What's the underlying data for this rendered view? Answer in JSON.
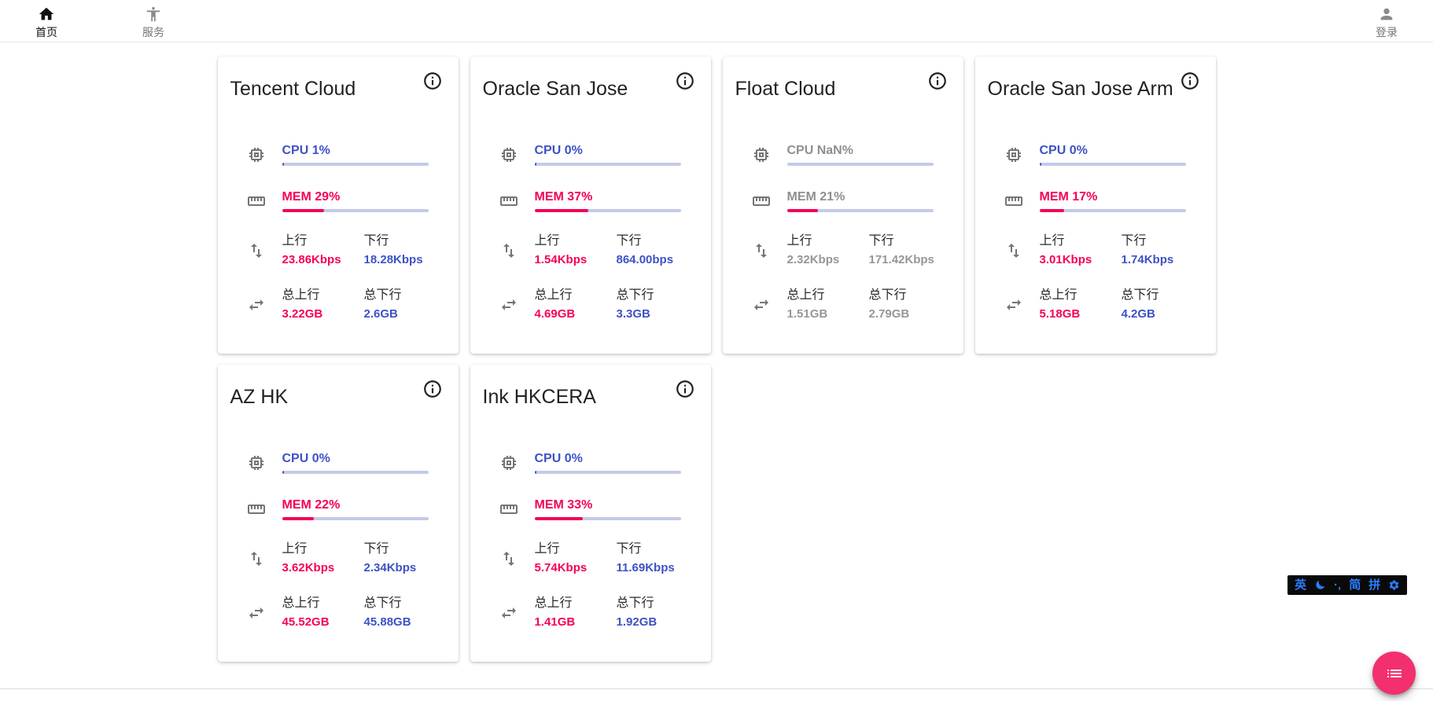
{
  "nav": {
    "home": {
      "label": "首页"
    },
    "services": {
      "label": "服务"
    },
    "login": {
      "label": "登录"
    }
  },
  "labels": {
    "upload": "上行",
    "download": "下行",
    "total_upload": "总上行",
    "total_download": "总下行"
  },
  "colors": {
    "cpu_blue": "#3d52c7",
    "mem_pink": "#f50057",
    "bar_track": "#c5cae9",
    "offline_gray": "#969696",
    "fab_pink": "#f2306e",
    "ime_blue": "#2b7cff"
  },
  "servers": [
    {
      "name": "Tencent Cloud",
      "state": "online",
      "cpu_label": "CPU 1%",
      "cpu_pct": 1,
      "mem_label": "MEM 29%",
      "mem_pct": 29,
      "up": "23.86Kbps",
      "down": "18.28Kbps",
      "total_up": "3.22GB",
      "total_down": "2.6GB"
    },
    {
      "name": "Oracle San Jose",
      "state": "online",
      "cpu_label": "CPU 0%",
      "cpu_pct": 0,
      "mem_label": "MEM 37%",
      "mem_pct": 37,
      "up": "1.54Kbps",
      "down": "864.00bps",
      "total_up": "4.69GB",
      "total_down": "3.3GB"
    },
    {
      "name": "Float Cloud",
      "state": "offline",
      "cpu_label": "CPU NaN%",
      "cpu_pct": null,
      "mem_label": "MEM 21%",
      "mem_pct": 21,
      "up": "2.32Kbps",
      "down": "171.42Kbps",
      "total_up": "1.51GB",
      "total_down": "2.79GB"
    },
    {
      "name": "Oracle San Jose Arm",
      "state": "online",
      "cpu_label": "CPU 0%",
      "cpu_pct": 0,
      "mem_label": "MEM 17%",
      "mem_pct": 17,
      "up": "3.01Kbps",
      "down": "1.74Kbps",
      "total_up": "5.18GB",
      "total_down": "4.2GB"
    },
    {
      "name": "AZ HK",
      "state": "online",
      "cpu_label": "CPU 0%",
      "cpu_pct": 0,
      "mem_label": "MEM 22%",
      "mem_pct": 22,
      "up": "3.62Kbps",
      "down": "2.34Kbps",
      "total_up": "45.52GB",
      "total_down": "45.88GB"
    },
    {
      "name": "Ink HKCERA",
      "state": "online",
      "cpu_label": "CPU 0%",
      "cpu_pct": 0,
      "mem_label": "MEM 33%",
      "mem_pct": 33,
      "up": "5.74Kbps",
      "down": "11.69Kbps",
      "total_up": "1.41GB",
      "total_down": "1.92GB"
    }
  ],
  "ime_bar": {
    "lang": "英",
    "punct": "·‚",
    "simplified": "简",
    "pinyin": "拼"
  }
}
